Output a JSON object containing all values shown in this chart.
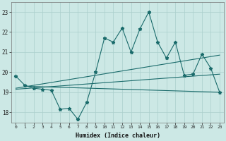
{
  "xlabel": "Humidex (Indice chaleur)",
  "bg_color": "#cce8e5",
  "grid_color": "#aacfcc",
  "line_color": "#1a6b6b",
  "xlim": [
    -0.5,
    23.5
  ],
  "ylim": [
    17.5,
    23.5
  ],
  "yticks": [
    18,
    19,
    20,
    21,
    22,
    23
  ],
  "xticks": [
    0,
    1,
    2,
    3,
    4,
    5,
    6,
    7,
    8,
    9,
    10,
    11,
    12,
    13,
    14,
    15,
    16,
    17,
    18,
    19,
    20,
    21,
    22,
    23
  ],
  "zigzag_x": [
    0,
    1,
    2,
    3,
    4,
    5,
    6,
    7,
    8,
    9,
    10,
    11,
    12,
    13,
    14,
    15,
    16,
    17,
    18,
    19,
    20,
    21,
    22,
    23
  ],
  "zigzag_y": [
    19.8,
    19.35,
    19.2,
    19.15,
    19.1,
    18.15,
    18.2,
    17.65,
    18.5,
    20.0,
    21.7,
    21.5,
    22.2,
    21.0,
    22.15,
    23.0,
    21.5,
    20.7,
    21.5,
    19.85,
    19.9,
    20.9,
    20.2,
    19.0
  ],
  "line1_x": [
    0,
    23
  ],
  "line1_y": [
    19.2,
    20.85
  ],
  "line2_x": [
    0,
    23
  ],
  "line2_y": [
    19.15,
    19.9
  ],
  "line3_x": [
    1,
    23
  ],
  "line3_y": [
    19.3,
    19.0
  ]
}
